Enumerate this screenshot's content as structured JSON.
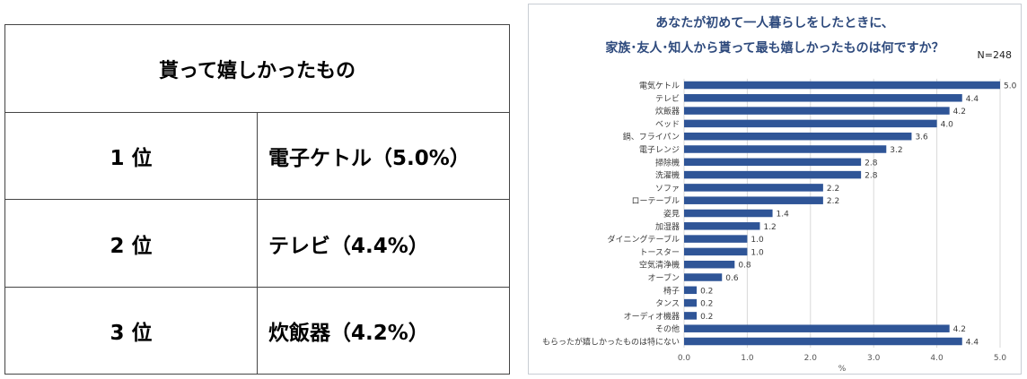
{
  "table": {
    "header": "貰って嬉しかったもの",
    "rows": [
      {
        "rank": "1 位",
        "item": "電子ケトル（5.0%）"
      },
      {
        "rank": "2 位",
        "item": "テレビ（4.4%）"
      },
      {
        "rank": "3 位",
        "item": "炊飯器（4.2%）"
      }
    ]
  },
  "chart_data": {
    "type": "bar",
    "orientation": "horizontal",
    "title": "あなたが初めて一人暮らしをしたときに、",
    "subtitle": "家族･友人･知人から貰って最も嬉しかったものは何ですか？",
    "n_label": "N=248",
    "xlabel": "%",
    "ylabel": "",
    "xlim": [
      0,
      5
    ],
    "ticks": [
      "0.0",
      "1.0",
      "2.0",
      "3.0",
      "4.0",
      "5.0"
    ],
    "grid": true,
    "bar_color": "#2f5597",
    "categories": [
      "電気ケトル",
      "テレビ",
      "炊飯器",
      "ベッド",
      "鍋、フライパン",
      "電子レンジ",
      "掃除機",
      "洗濯機",
      "ソファ",
      "ローテーブル",
      "姿見",
      "加湿器",
      "ダイニングテーブル",
      "トースター",
      "空気清浄機",
      "オーブン",
      "椅子",
      "タンス",
      "オーディオ機器",
      "その他",
      "もらったが嬉しかったものは特にない"
    ],
    "values": [
      5.0,
      4.4,
      4.2,
      4.0,
      3.6,
      3.2,
      2.8,
      2.8,
      2.2,
      2.2,
      1.4,
      1.2,
      1.0,
      1.0,
      0.8,
      0.6,
      0.2,
      0.2,
      0.2,
      4.2,
      4.4
    ],
    "value_labels": [
      "5.0",
      "4.4",
      "4.2",
      "4.0",
      "3.6",
      "3.2",
      "2.8",
      "2.8",
      "2.2",
      "2.2",
      "1.4",
      "1.2",
      "1.0",
      "1.0",
      "0.8",
      "0.6",
      "0.2",
      "0.2",
      "0.2",
      "4.2",
      "4.4"
    ]
  }
}
